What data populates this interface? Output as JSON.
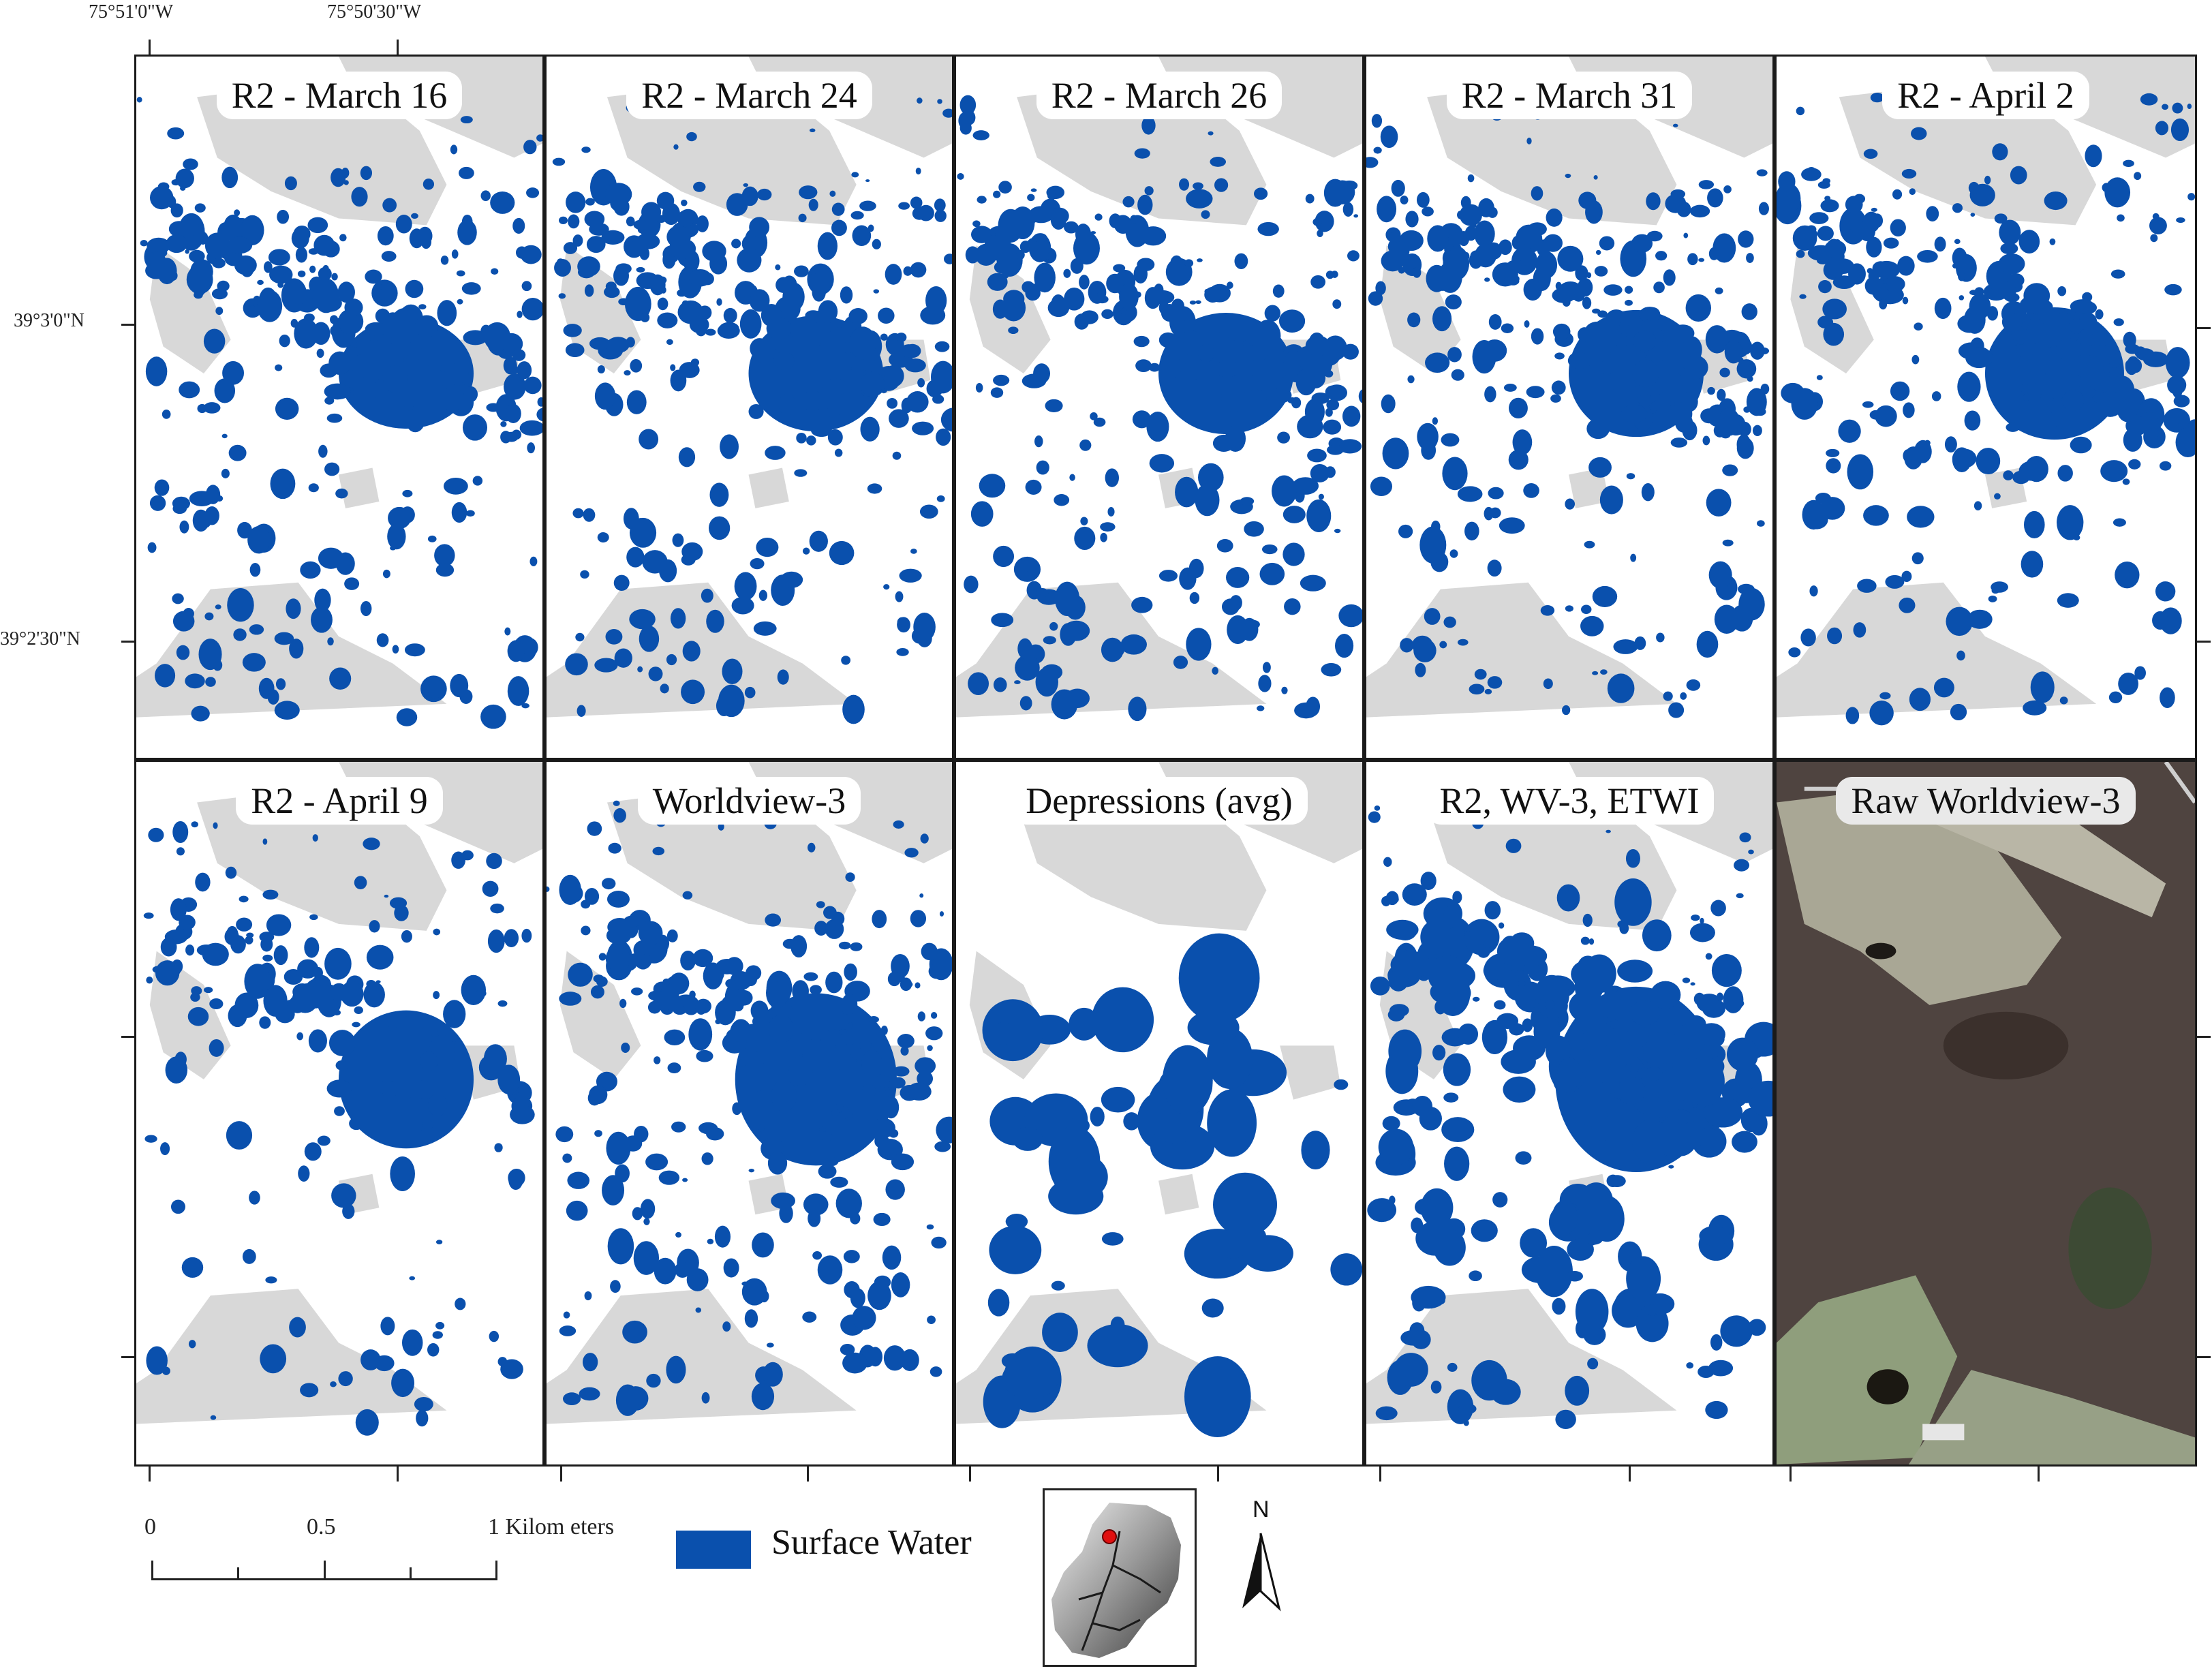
{
  "coordinates": {
    "top_longitudes": [
      "75°51'0\"W",
      "75°50'30\"W"
    ],
    "left_latitudes": [
      "39°3'0\"N",
      "39°2'30\"N"
    ]
  },
  "panels": [
    {
      "title": "R2 - March 16",
      "kind": "classified"
    },
    {
      "title": "R2 - March 24",
      "kind": "classified"
    },
    {
      "title": "R2 - March 26",
      "kind": "classified"
    },
    {
      "title": "R2 - March 31",
      "kind": "classified"
    },
    {
      "title": "R2 - April 2",
      "kind": "classified"
    },
    {
      "title": "R2 - April 9",
      "kind": "classified"
    },
    {
      "title": "Worldview-3",
      "kind": "classified"
    },
    {
      "title": "Depressions (avg)",
      "kind": "classified"
    },
    {
      "title": "R2, WV-3, ETWI",
      "kind": "classified"
    },
    {
      "title": "Raw Worldview-3",
      "kind": "imagery"
    }
  ],
  "scale_bar": {
    "labels": [
      "0",
      "0.5",
      "1 Kilom eters"
    ]
  },
  "legend": {
    "label": "Surface Water",
    "color": "#0a50ad"
  },
  "north_arrow": {
    "label": "N"
  },
  "colors": {
    "water": "#0a50ad",
    "upland": "#d8d8d8",
    "background": "#ffffff"
  }
}
